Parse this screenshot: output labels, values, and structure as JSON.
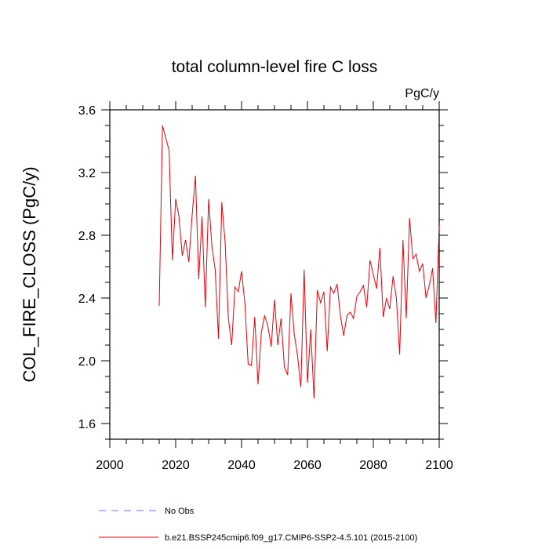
{
  "chart_data": {
    "type": "line",
    "title": "total column-level fire C loss",
    "units": "PgC/y",
    "xlabel": "",
    "ylabel": "COL_FIRE_CLOSS  (PgC/y)",
    "xlim": [
      2000,
      2100
    ],
    "ylim": [
      1.5,
      3.6
    ],
    "xticks": [
      2000,
      2020,
      2040,
      2060,
      2080,
      2100
    ],
    "xtick_labels": [
      "2000",
      "2020",
      "2040",
      "2060",
      "2080",
      "2100"
    ],
    "yticks": [
      1.6,
      2.0,
      2.4,
      2.8,
      3.2,
      3.6
    ],
    "ytick_labels": [
      "1.6",
      "2.0",
      "2.4",
      "2.8",
      "3.2",
      "3.6"
    ],
    "grid": false,
    "series": [
      {
        "name": "b.e21.BSSP245cmip6.f09_g17.CMIP6-SSP2-4.5.101 (2015-2100)",
        "color": "#e8000b",
        "x": [
          2015,
          2016,
          2017,
          2018,
          2019,
          2020,
          2021,
          2022,
          2023,
          2024,
          2025,
          2026,
          2027,
          2028,
          2029,
          2030,
          2031,
          2032,
          2033,
          2034,
          2035,
          2036,
          2037,
          2038,
          2039,
          2040,
          2041,
          2042,
          2043,
          2044,
          2045,
          2046,
          2047,
          2048,
          2049,
          2050,
          2051,
          2052,
          2053,
          2054,
          2055,
          2056,
          2057,
          2058,
          2059,
          2060,
          2061,
          2062,
          2063,
          2064,
          2065,
          2066,
          2067,
          2068,
          2069,
          2070,
          2071,
          2072,
          2073,
          2074,
          2075,
          2076,
          2077,
          2078,
          2079,
          2080,
          2081,
          2082,
          2083,
          2084,
          2085,
          2086,
          2087,
          2088,
          2089,
          2090,
          2091,
          2092,
          2093,
          2094,
          2095,
          2096,
          2097,
          2098,
          2099,
          2100
        ],
        "values": [
          2.35,
          3.5,
          3.42,
          3.34,
          2.64,
          3.03,
          2.92,
          2.67,
          2.77,
          2.63,
          2.93,
          3.18,
          2.52,
          2.92,
          2.34,
          3.03,
          2.73,
          2.58,
          2.14,
          3.01,
          2.76,
          2.27,
          2.1,
          2.47,
          2.44,
          2.57,
          2.37,
          1.98,
          1.97,
          2.28,
          1.85,
          2.18,
          2.29,
          2.22,
          2.09,
          2.39,
          2.1,
          2.27,
          1.96,
          1.91,
          2.43,
          2.17,
          2.03,
          1.83,
          2.58,
          1.86,
          2.2,
          1.76,
          2.45,
          2.37,
          2.44,
          2.06,
          2.47,
          2.43,
          2.49,
          2.29,
          2.16,
          2.29,
          2.31,
          2.27,
          2.41,
          2.44,
          2.48,
          2.34,
          2.64,
          2.55,
          2.46,
          2.72,
          2.28,
          2.4,
          2.33,
          2.54,
          2.4,
          2.04,
          2.77,
          2.27,
          2.91,
          2.65,
          2.68,
          2.57,
          2.62,
          2.4,
          2.48,
          2.59,
          2.24,
          2.86
        ]
      }
    ],
    "legend": {
      "placement": "bottom",
      "entries": [
        {
          "label": "No Obs",
          "style": "dashed",
          "color": "#6f6fe8"
        },
        {
          "label": "b.e21.BSSP245cmip6.f09_g17.CMIP6-SSP2-4.5.101 (2015-2100)",
          "style": "solid",
          "color": "#e8000b"
        }
      ]
    }
  }
}
